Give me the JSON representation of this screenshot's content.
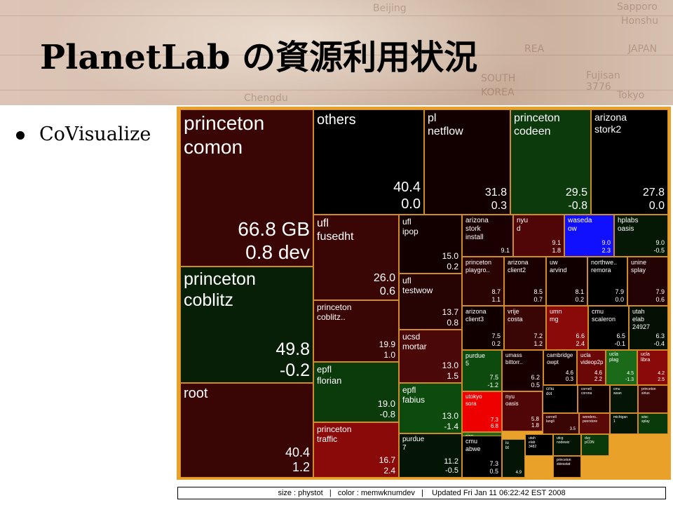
{
  "slide": {
    "title": "PlanetLab の資源利用状況",
    "bullet": "CoVisualize",
    "map_labels": [
      "Beijing",
      "SOUTH",
      "KOREA",
      "JAPAN",
      "Honshu",
      "Sapporo",
      "Chengdu",
      "Fujisan",
      "3776",
      "Tokyo",
      "REA"
    ]
  },
  "status": {
    "size": "size : phystot",
    "color": "color : memwknumdev",
    "updated": "Updated Fri Jan 11 06:22:42 EST 2008"
  },
  "cells": [
    {
      "name": "princeton\ncomon",
      "value": "66.8 GB\n0.8 dev",
      "color": "#3a0505",
      "fn": 28,
      "fv": 28
    },
    {
      "name": "princeton\ncoblitz",
      "value": "49.8\n-0.2",
      "color": "#071f07",
      "fn": 25,
      "fv": 25
    },
    {
      "name": "root",
      "value": "40.4\n1.2",
      "color": "#3a0505",
      "fn": 20,
      "fv": 18
    },
    {
      "name": "others",
      "value": "40.4\n0.0",
      "color": "#000000",
      "fn": 20,
      "fv": 20
    },
    {
      "name": "pl\nnetflow",
      "value": "31.8\n0.3",
      "color": "#120000",
      "fn": 16,
      "fv": 16
    },
    {
      "name": "princeton\ncodeen",
      "value": "29.5\n-0.8",
      "color": "#0c3a0c",
      "fn": 16,
      "fv": 16
    },
    {
      "name": "arizona\nstork2",
      "value": "27.8\n0.0",
      "color": "#000000",
      "fn": 14,
      "fv": 16
    },
    {
      "name": "ufl\nfusedht",
      "value": "26.0\n0.6",
      "color": "#3a0505",
      "fn": 16,
      "fv": 16
    },
    {
      "name": "ufl\nipop",
      "value": "15.0\n0.2",
      "color": "#120000",
      "fn": 12,
      "fv": 12
    },
    {
      "name": "ufl\ntestwow",
      "value": "13.7\n0.8",
      "color": "#260404",
      "fn": 12,
      "fv": 12
    },
    {
      "name": "princeton\ncoblitz..",
      "value": "19.9\n1.0",
      "color": "#3a0505",
      "fn": 12,
      "fv": 12
    },
    {
      "name": "ucsd\nmortar",
      "value": "13.0\n1.5",
      "color": "#4a0808",
      "fn": 12,
      "fv": 12
    },
    {
      "name": "epfl\nflorian",
      "value": "19.0\n-0.8",
      "color": "#0b3a0b",
      "fn": 13,
      "fv": 13
    },
    {
      "name": "princeton\ntraffic",
      "value": "16.7\n2.4",
      "color": "#8a0a0a",
      "fn": 12,
      "fv": 12
    },
    {
      "name": "epfl\nfabius",
      "value": "13.0\n-1.4",
      "color": "#0d4a0d",
      "fn": 12,
      "fv": 12
    },
    {
      "name": "purdue\n7",
      "value": "11.2\n-0.5",
      "color": "#051505",
      "fn": 10,
      "fv": 11
    },
    {
      "name": "arizona\nstork\ninstall",
      "value": "9.1",
      "color": "#1a0000",
      "fn": 10,
      "fv": 9
    },
    {
      "name": "nyu\nd",
      "value": "9.1\n1.8",
      "color": "#500606",
      "fn": 10,
      "fv": 9
    },
    {
      "name": "waseda\now",
      "value": "9.0\n2.3",
      "color": "#1010ff",
      "fn": 10,
      "fv": 9
    },
    {
      "name": "hplabs\noasis",
      "value": "9.0\n-0.5",
      "color": "#051805",
      "fn": 10,
      "fv": 9
    },
    {
      "name": "princeton\nplaygro..",
      "value": "8.7\n1.1",
      "color": "#2a0303",
      "fn": 9,
      "fv": 9
    },
    {
      "name": "arizona\nclient2",
      "value": "8.5\n0.7",
      "color": "#1a0000",
      "fn": 9,
      "fv": 9
    },
    {
      "name": "uw\narvind",
      "value": "8.1\n0.2",
      "color": "#100000",
      "fn": 9,
      "fv": 9
    },
    {
      "name": "northwe..\nremora",
      "value": "7.9\n0.0",
      "color": "#000000",
      "fn": 9,
      "fv": 9
    },
    {
      "name": "unine\nsplay",
      "value": "7.9\n0.6",
      "color": "#230303",
      "fn": 9,
      "fv": 9
    },
    {
      "name": "arizona\nclient3",
      "value": "7.5\n0.2",
      "color": "#100000",
      "fn": 9,
      "fv": 9
    },
    {
      "name": "vrije\ncosta",
      "value": "7.2\n1.2",
      "color": "#3a0505",
      "fn": 9,
      "fv": 9
    },
    {
      "name": "umn\nmg",
      "value": "6.6\n2.4",
      "color": "#8a0a0a",
      "fn": 9,
      "fv": 9
    },
    {
      "name": "cmu\nscaleron",
      "value": "6.5\n-0.1",
      "color": "#000000",
      "fn": 9,
      "fv": 9
    },
    {
      "name": "utah\nelab\n24927",
      "value": "6.3\n-0.4",
      "color": "#051005",
      "fn": 9,
      "fv": 9
    },
    {
      "name": "purdue\n5",
      "value": "7.5\n-1.2",
      "color": "#0d4a0d",
      "fn": 9,
      "fv": 9
    },
    {
      "name": "umass\nbittorr..",
      "value": "6.2\n0.5",
      "color": "#180000",
      "fn": 8,
      "fv": 9
    },
    {
      "name": "cambridge\nowpt",
      "value": "4.6\n0.3",
      "color": "#120000",
      "fn": 8,
      "fv": 8
    },
    {
      "name": "ucla\nvideop2p",
      "value": "4.6\n2.2",
      "color": "#6a0808",
      "fn": 8,
      "fv": 8
    },
    {
      "name": "ucla\nplag",
      "value": "4.5\n-1.3",
      "color": "#1a6a1a",
      "fn": 7,
      "fv": 7
    },
    {
      "name": "ucla\nlibra",
      "value": "4.2\n2.5",
      "color": "#8a0a0a",
      "fn": 7,
      "fv": 7
    },
    {
      "name": "nyu\noasis",
      "value": "5.8\n1.8",
      "color": "#500606",
      "fn": 8,
      "fv": 8
    },
    {
      "name": "cmu\ndot",
      "value": "",
      "color": "#000000",
      "fn": 6,
      "fv": 6
    },
    {
      "name": "cornell\ncorona",
      "value": "",
      "color": "#100000",
      "fn": 5,
      "fv": 5
    },
    {
      "name": "cmu\nswan",
      "value": "",
      "color": "#051505",
      "fn": 5,
      "fv": 5
    },
    {
      "name": "princeton\nsirius",
      "value": "",
      "color": "#3a0505",
      "fn": 5,
      "fv": 5
    },
    {
      "name": "utokyo\nsora",
      "value": "7.3\n6.8",
      "color": "#ee0000",
      "fn": 8,
      "fv": 8
    },
    {
      "name": "rice\nsrc\nslice",
      "value": "5.1",
      "color": "#1a6a1a",
      "fn": 7,
      "fv": 7
    },
    {
      "name": "cornell\nlangli",
      "value": "3.5",
      "color": "#3a0505",
      "fn": 5,
      "fv": 6
    },
    {
      "name": "wonders..\npeerstore",
      "value": "",
      "color": "#5a0808",
      "fn": 5,
      "fv": 5
    },
    {
      "name": "michigan\n1",
      "value": "",
      "color": "#051505",
      "fn": 5,
      "fv": 5
    },
    {
      "name": "wisc\nsplay",
      "value": "",
      "color": "#0a3a0a",
      "fn": 5,
      "fv": 5
    },
    {
      "name": "cmu\nabwe",
      "value": "7.3\n0.5",
      "color": "#000000",
      "fn": 9,
      "fv": 9
    },
    {
      "name": "iu\nbt",
      "value": "4.9",
      "color": "#051505",
      "fn": 6,
      "fv": 6
    },
    {
      "name": "utah\nelab\n3482",
      "value": "",
      "color": "#000000",
      "fn": 5,
      "fv": 5
    },
    {
      "name": "utcg\nnodewiz",
      "value": "",
      "color": "#051505",
      "fn": 5,
      "fv": 5
    },
    {
      "name": "princeton\nskiesstat",
      "value": "",
      "color": "#100000",
      "fn": 5,
      "fv": 5
    },
    {
      "name": "duy\npCDN",
      "value": "",
      "color": "#0a3a0a",
      "fn": 5,
      "fv": 5
    }
  ]
}
